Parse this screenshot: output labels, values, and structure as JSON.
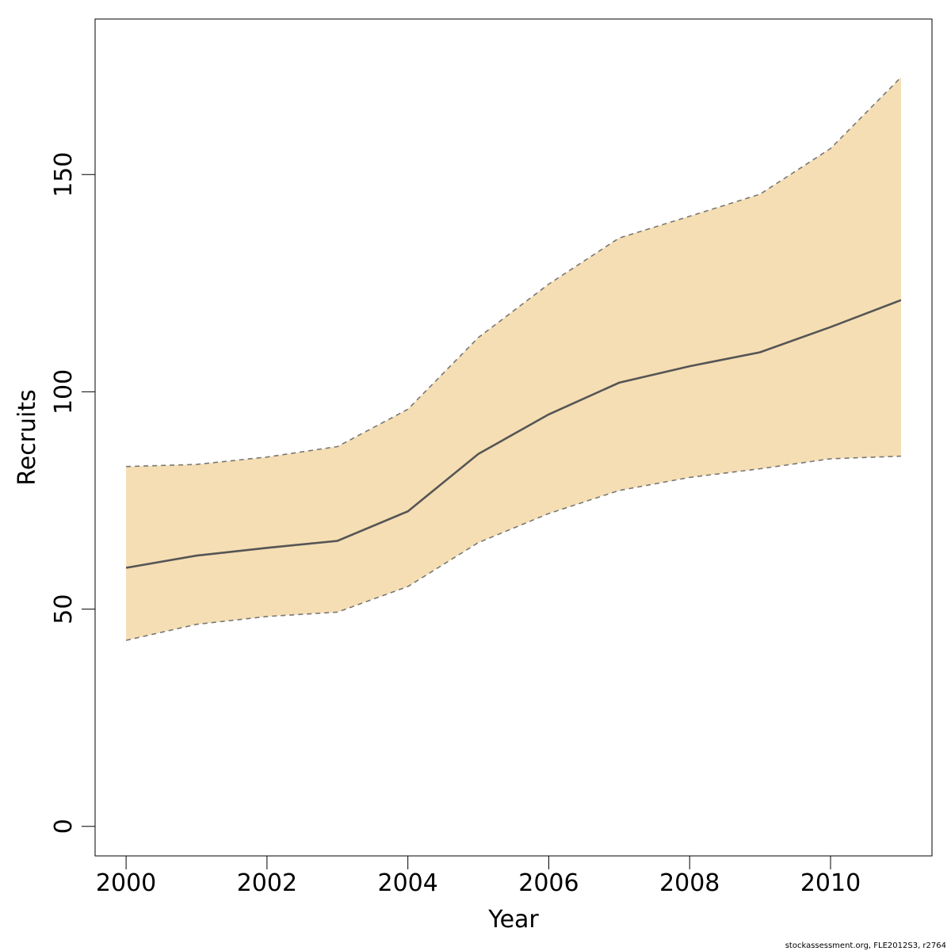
{
  "chart_data": {
    "type": "area",
    "title": "",
    "xlabel": "Year",
    "ylabel": "Recruits",
    "x": [
      2000,
      2001,
      2002,
      2003,
      2004,
      2005,
      2006,
      2007,
      2008,
      2009,
      2010,
      2011
    ],
    "series": [
      {
        "values": [
          59.5,
          62.3,
          64.1,
          65.7,
          72.5,
          85.7,
          94.8,
          102.1,
          105.9,
          109.1,
          114.9,
          121.1
        ]
      },
      {
        "values": [
          42.8,
          46.5,
          48.3,
          49.3,
          55.2,
          65.3,
          72.0,
          77.3,
          80.3,
          82.3,
          84.6,
          85.2
        ]
      },
      {
        "values": [
          82.8,
          83.3,
          85.0,
          87.4,
          96.0,
          112.5,
          124.8,
          135.4,
          140.4,
          145.5,
          156.0,
          172.4
        ]
      }
    ],
    "xlim": [
      1999.56,
      2011.44
    ],
    "ylim": [
      -6.8,
      185.8
    ],
    "xticks": [
      2000,
      2002,
      2004,
      2006,
      2008,
      2010
    ],
    "yticks": [
      0,
      50,
      100,
      150
    ],
    "grid": false,
    "colors": {
      "band": "#f5deb3",
      "median": "#555555",
      "bounds": "#777777",
      "frame": "#000000"
    }
  },
  "footer": {
    "credit": "stockassessment.org, FLE2012S3, r2764"
  }
}
